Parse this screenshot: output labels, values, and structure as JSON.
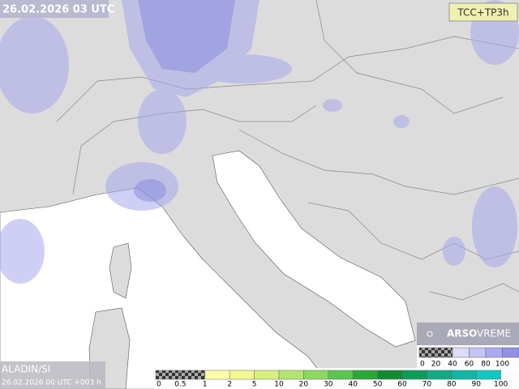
{
  "header": {
    "valid_time": "26.02.2026 03 UTC",
    "product": "TCC+TP3h"
  },
  "footer": {
    "model": "ALADIN/SI",
    "run": "26.02.2026 00 UTC +003 h"
  },
  "logo": {
    "brand": "ARSO",
    "section": "VREME"
  },
  "cloud_legend": {
    "labels": [
      "0",
      "20",
      "40",
      "60",
      "80",
      "100"
    ],
    "colors": [
      "checker",
      "checker",
      "#dcdcf8",
      "#c4c4f4",
      "#aaaaee",
      "#9090e6"
    ]
  },
  "precip_legend": {
    "labels": [
      "0",
      "0.5",
      "1",
      "2",
      "5",
      "10",
      "20",
      "30",
      "40",
      "50",
      "60",
      "70",
      "80",
      "90",
      "100"
    ],
    "colors": [
      "checker",
      "checker",
      "#ffffa8",
      "#f4f890",
      "#d8f080",
      "#b4e470",
      "#8cd860",
      "#5cc450",
      "#2ca838",
      "#108c30",
      "#0c9c5c",
      "#10ac84",
      "#10b8a4",
      "#10c8c0"
    ]
  }
}
